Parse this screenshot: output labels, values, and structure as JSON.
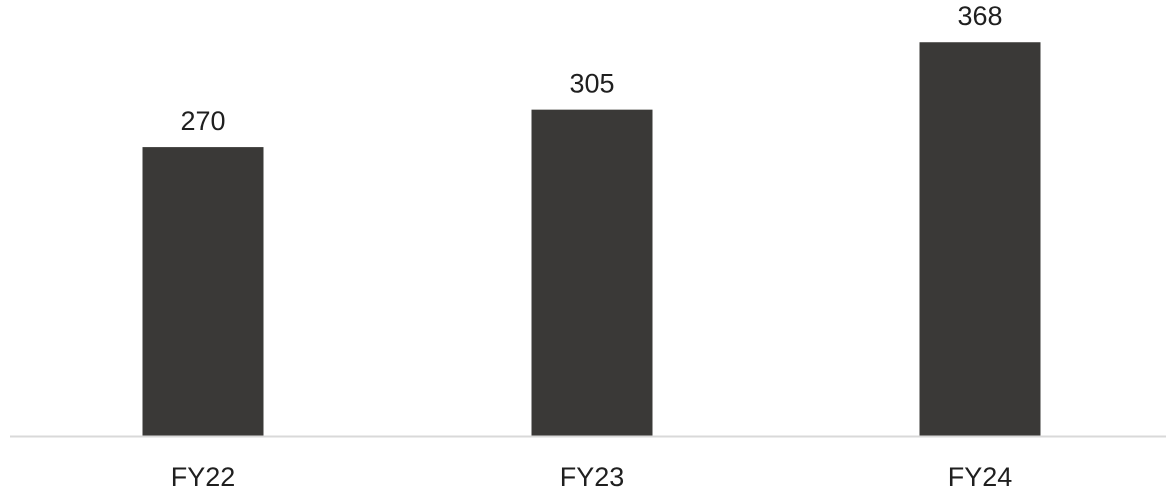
{
  "chart_data": {
    "type": "bar",
    "title": "",
    "xlabel": "",
    "ylabel": "",
    "categories": [
      "FY22",
      "FY23",
      "FY24"
    ],
    "values": [
      270,
      305,
      368
    ],
    "data_labels": [
      "270",
      "305",
      "368"
    ],
    "ylim": [
      0,
      400
    ],
    "grid": false,
    "legend": "none",
    "colors": {
      "bar": "#3a3937",
      "axis": "#d9d9d9",
      "text": "#1f1f1f"
    }
  }
}
